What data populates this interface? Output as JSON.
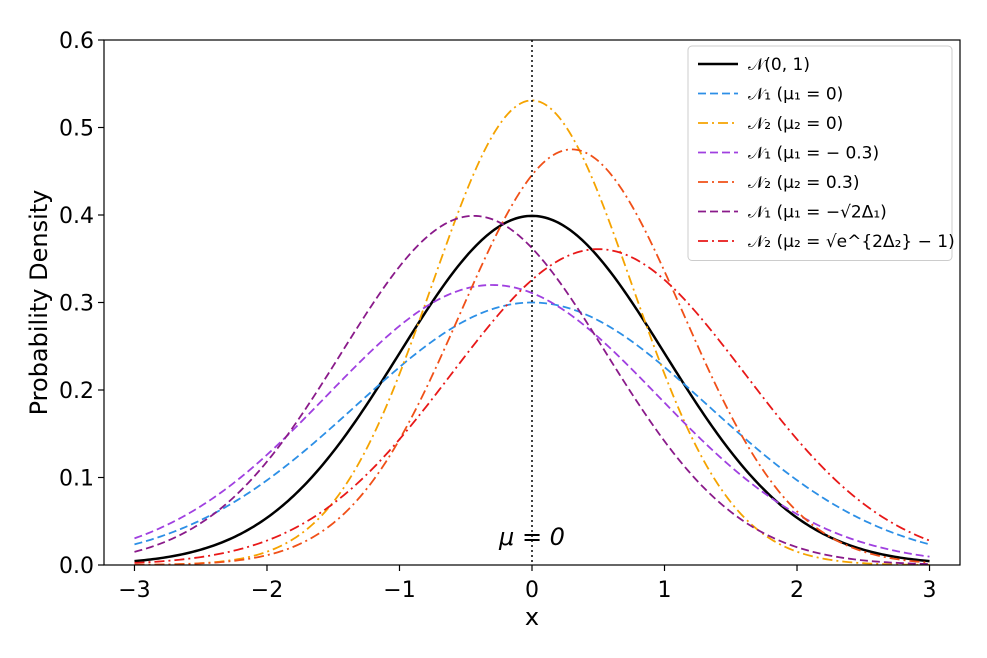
{
  "chart_data": {
    "type": "line",
    "title": "",
    "xlabel": "x",
    "ylabel": "Probability Density",
    "xlim": [
      -3.23,
      3.23
    ],
    "ylim": [
      0.0,
      0.6
    ],
    "xticks": [
      -3,
      -2,
      -1,
      0,
      1,
      2,
      3
    ],
    "xtick_labels": [
      "−3",
      "−2",
      "−1",
      "0",
      "1",
      "2",
      "3"
    ],
    "yticks": [
      0.0,
      0.1,
      0.2,
      0.3,
      0.4,
      0.5,
      0.6
    ],
    "ytick_labels": [
      "0.0",
      "0.1",
      "0.2",
      "0.3",
      "0.4",
      "0.5",
      "0.6"
    ],
    "x_range": [
      -3,
      3
    ],
    "legend_position": "top-right",
    "grid": false,
    "vline": {
      "x": 0,
      "style": "dotted",
      "color": "#000000"
    },
    "annotation": {
      "text": "μ = 0",
      "x": 0,
      "y": 0.032
    },
    "series": [
      {
        "name": "𝒩(0, 1)",
        "mu": 0.0,
        "sigma": 1.0,
        "peak": 0.399,
        "color": "#000000",
        "style": "solid"
      },
      {
        "name": "𝒩₁ (μ₁ = 0)",
        "mu": 0.0,
        "sigma": 1.33,
        "peak": 0.3,
        "color": "#2c8fe6",
        "style": "dashed"
      },
      {
        "name": "𝒩₂ (μ₂ = 0)",
        "mu": 0.0,
        "sigma": 0.75,
        "peak": 0.531,
        "color": "#f5a300",
        "style": "dashdot"
      },
      {
        "name": "𝒩₁ (μ₁ = − 0.3)",
        "mu": -0.3,
        "sigma": 1.245,
        "peak": 0.32,
        "color": "#a040e0",
        "style": "dashed"
      },
      {
        "name": "𝒩₂ (μ₂ = 0.3)",
        "mu": 0.3,
        "sigma": 0.84,
        "peak": 0.475,
        "color": "#f05018",
        "style": "dashdot"
      },
      {
        "name": "𝒩₁ (μ₁ = −√2Δ₁)",
        "mu": -0.44,
        "sigma": 1.0,
        "peak": 0.399,
        "color": "#8a1a8a",
        "style": "dashed"
      },
      {
        "name": "𝒩₂ (μ₂ = √e^{2Δ₂} − 1)",
        "mu": 0.5,
        "sigma": 1.105,
        "peak": 0.361,
        "color": "#e81818",
        "style": "dashdot"
      }
    ]
  }
}
